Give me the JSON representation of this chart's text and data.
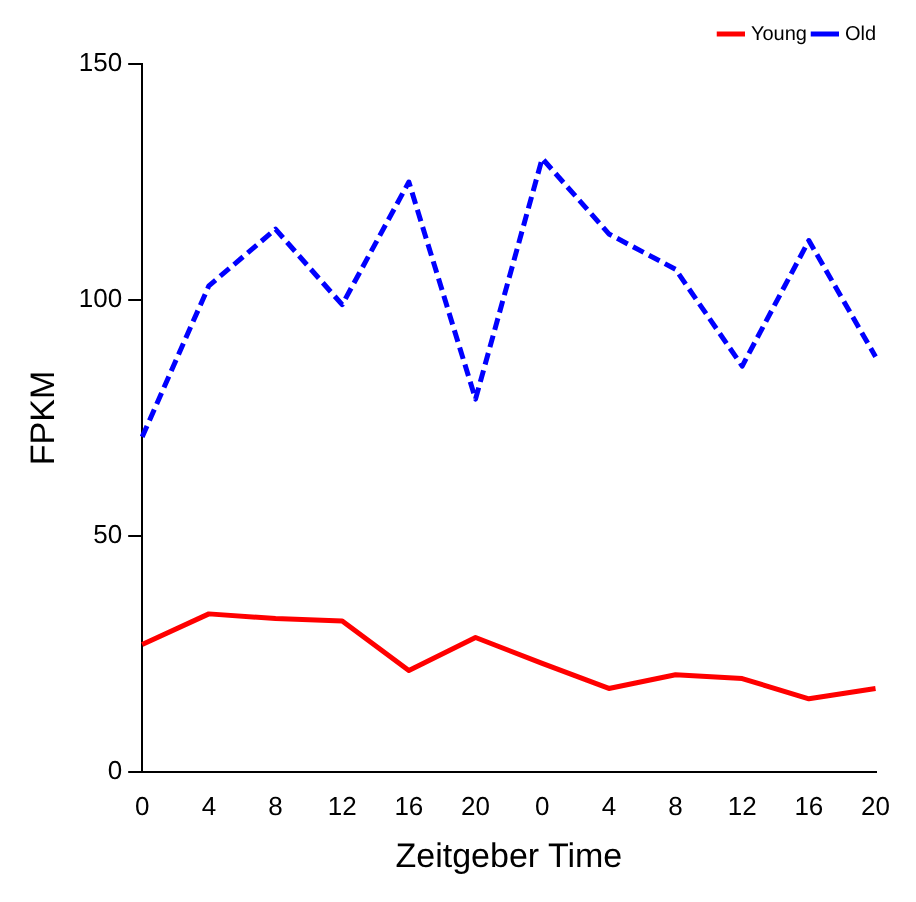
{
  "chart_data": {
    "type": "line",
    "xlabel": "Zeitgeber Time",
    "ylabel": "FPKM",
    "categories": [
      "0",
      "4",
      "8",
      "12",
      "16",
      "20",
      "0",
      "4",
      "8",
      "12",
      "16",
      "20"
    ],
    "series": [
      {
        "name": "Young",
        "color": "#ff0000",
        "line_style": "solid",
        "values": [
          27,
          33.5,
          32.5,
          32,
          21.5,
          28.5,
          23,
          17.7,
          20.6,
          19.8,
          15.5,
          17.7
        ]
      },
      {
        "name": "Old",
        "color": "#0000ff",
        "line_style": "dashed",
        "values": [
          71,
          103,
          115,
          99,
          125,
          79,
          130,
          114,
          106.5,
          86,
          112.6,
          88
        ]
      }
    ],
    "ylim": [
      0,
      150
    ],
    "yticks": [
      0,
      50,
      100,
      150
    ],
    "grid": false,
    "legend": "top right",
    "marker": "none"
  }
}
